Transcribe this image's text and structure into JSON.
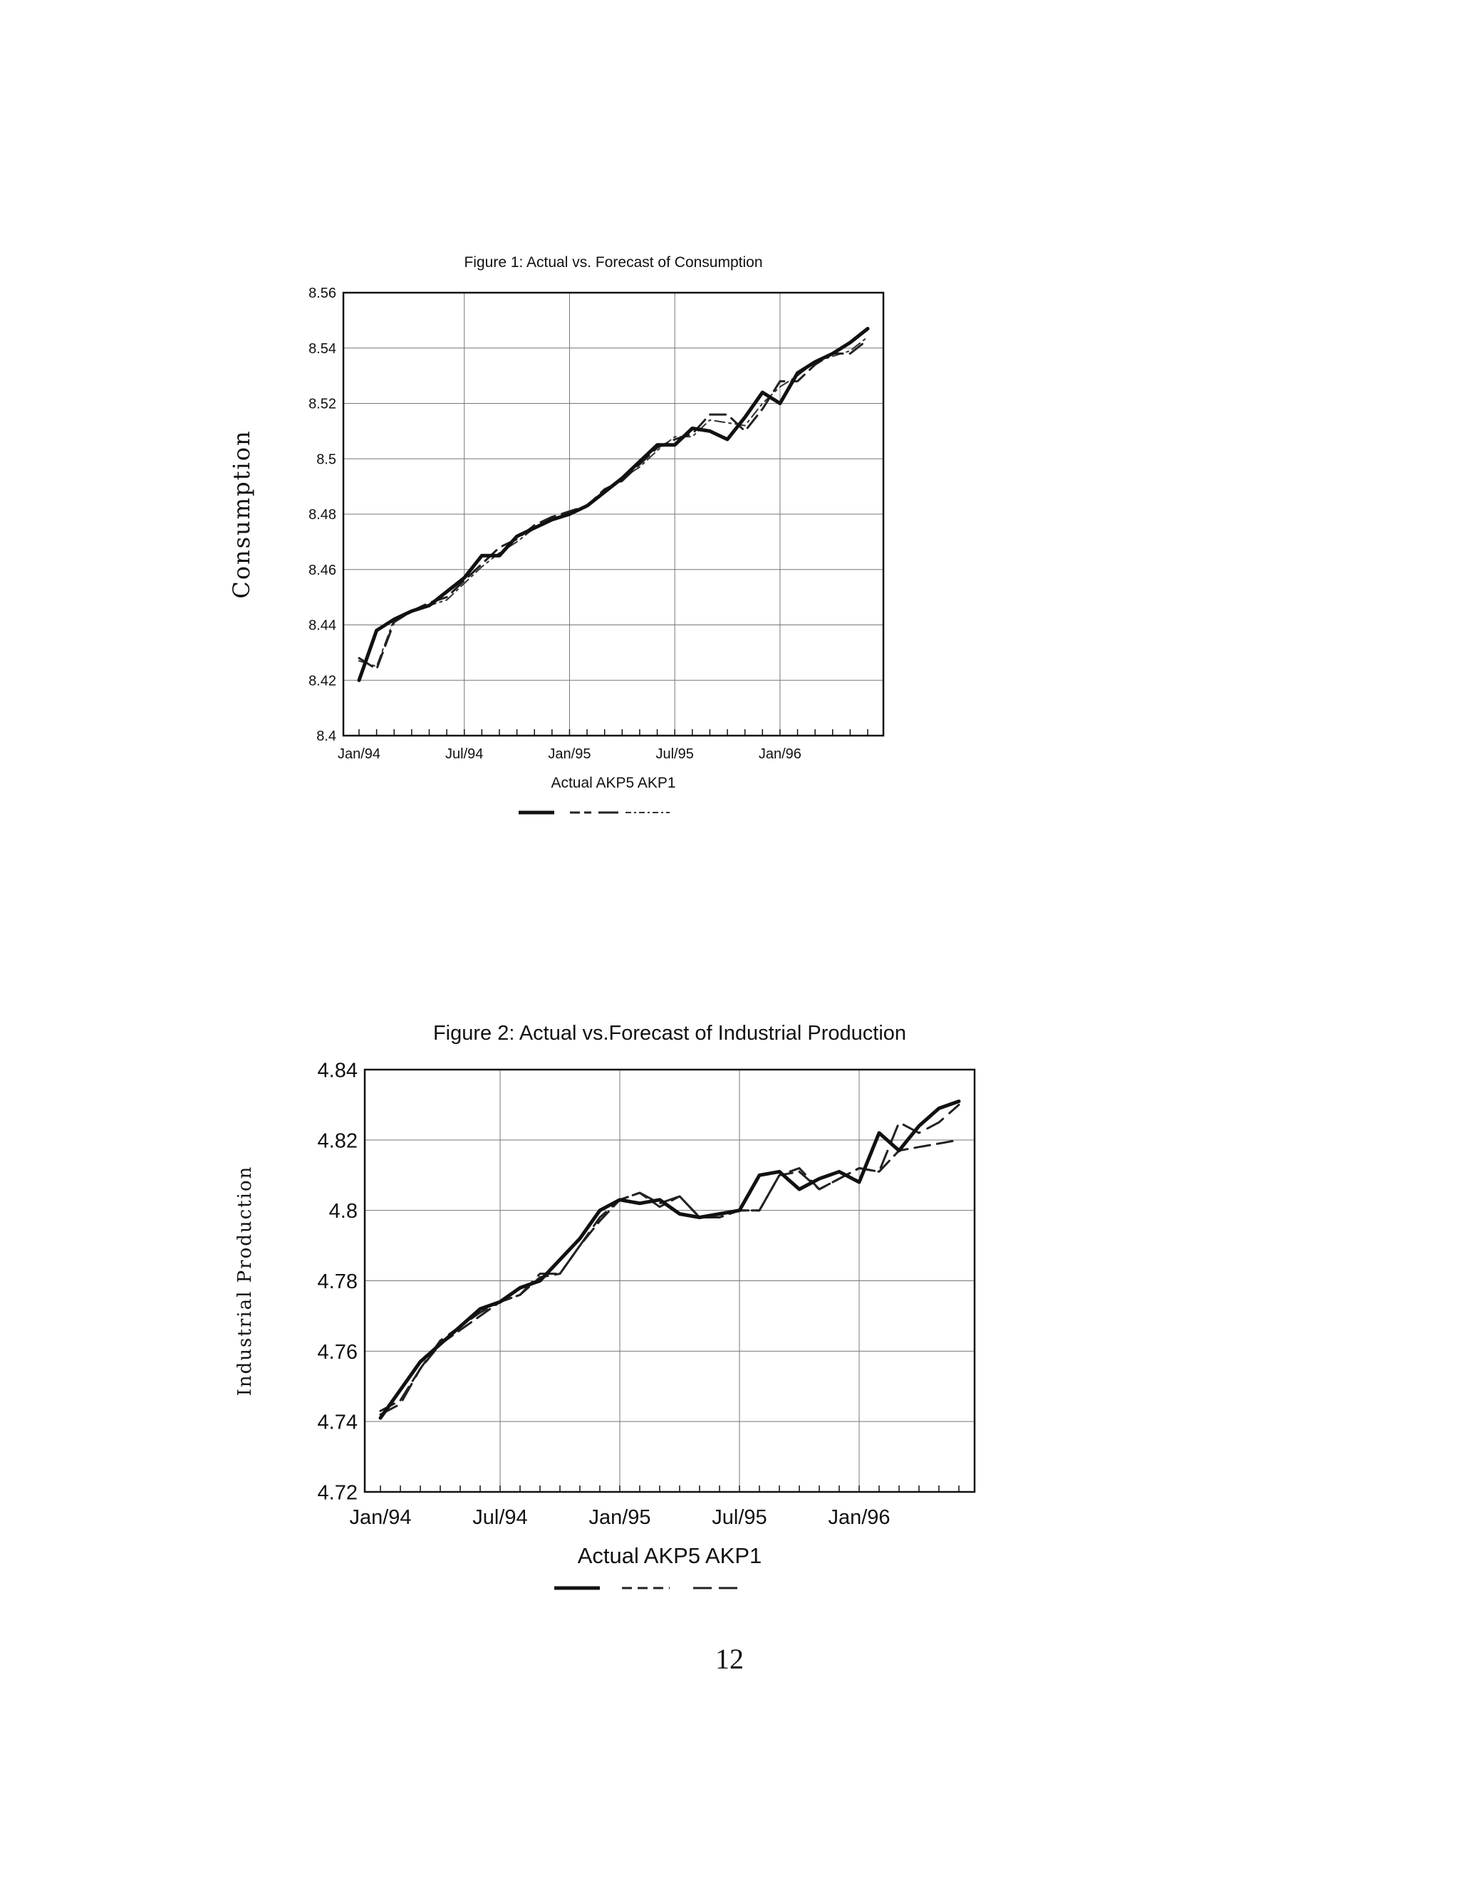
{
  "page_number": "12",
  "chart_data": [
    {
      "type": "line",
      "title": "Figure 1: Actual vs. Forecast of Consumption",
      "xlabel": "",
      "ylabel": "Consumption",
      "ylim": [
        8.4,
        8.56
      ],
      "yticks": [
        8.56,
        8.54,
        8.52,
        8.5,
        8.48,
        8.46,
        8.44,
        8.42,
        8.4
      ],
      "ytick_labels": [
        "8.56",
        "8.54",
        "8.52",
        "8.5",
        "8.48",
        "8.46",
        "8.44",
        "8.42",
        "8.4"
      ],
      "xlim": [
        "Jan/94",
        "Jun/96"
      ],
      "xtick_labels": [
        "Jan/94",
        "Jul/94",
        "Jan/95",
        "Jul/95",
        "Jan/96"
      ],
      "grid": true,
      "legend_text": "Actual AKP5 AKP1",
      "legend_placement": "bottom",
      "x": [
        "Jan/94",
        "Feb/94",
        "Mar/94",
        "Apr/94",
        "May/94",
        "Jun/94",
        "Jul/94",
        "Aug/94",
        "Sep/94",
        "Oct/94",
        "Nov/94",
        "Dec/94",
        "Jan/95",
        "Feb/95",
        "Mar/95",
        "Apr/95",
        "May/95",
        "Jun/95",
        "Jul/95",
        "Aug/95",
        "Sep/95",
        "Oct/95",
        "Nov/95",
        "Dec/95",
        "Jan/96",
        "Feb/96",
        "Mar/96",
        "Apr/96",
        "May/96",
        "Jun/96"
      ],
      "series": [
        {
          "name": "Actual",
          "style": "solid-thick",
          "values": [
            8.42,
            8.438,
            8.442,
            8.445,
            8.447,
            8.452,
            8.457,
            8.465,
            8.465,
            8.472,
            8.475,
            8.478,
            8.48,
            8.483,
            8.488,
            8.493,
            8.499,
            8.505,
            8.505,
            8.511,
            8.51,
            8.507,
            8.515,
            8.524,
            8.52,
            8.531,
            8.535,
            8.538,
            8.542,
            8.547
          ]
        },
        {
          "name": "AKP5",
          "style": "dashed",
          "values": [
            8.428,
            8.424,
            8.441,
            8.445,
            8.448,
            8.45,
            8.456,
            8.462,
            8.468,
            8.471,
            8.476,
            8.479,
            8.481,
            8.483,
            8.489,
            8.492,
            8.498,
            8.504,
            8.507,
            8.509,
            8.516,
            8.516,
            8.51,
            8.518,
            8.528,
            8.528,
            8.534,
            8.538,
            8.538,
            8.543
          ]
        },
        {
          "name": "AKP1",
          "style": "dash-dot",
          "values": [
            8.427,
            8.425,
            8.442,
            8.445,
            8.447,
            8.449,
            8.455,
            8.461,
            8.466,
            8.47,
            8.475,
            8.478,
            8.481,
            8.483,
            8.488,
            8.493,
            8.497,
            8.503,
            8.508,
            8.508,
            8.514,
            8.513,
            8.512,
            8.52,
            8.526,
            8.53,
            8.535,
            8.537,
            8.539,
            8.544
          ]
        }
      ]
    },
    {
      "type": "line",
      "title": "Figure 2: Actual vs.Forecast of Industrial Production",
      "xlabel": "",
      "ylabel": "Industrial Production",
      "ylim": [
        4.72,
        4.84
      ],
      "yticks": [
        4.84,
        4.82,
        4.8,
        4.78,
        4.76,
        4.74,
        4.72
      ],
      "ytick_labels": [
        "4.84",
        "4.82",
        "4.8",
        "4.78",
        "4.76",
        "4.74",
        "4.72"
      ],
      "xlim": [
        "Jan/94",
        "Jun/96"
      ],
      "xtick_labels": [
        "Jan/94",
        "Jul/94",
        "Jan/95",
        "Jul/95",
        "Jan/96"
      ],
      "grid": true,
      "legend_text": "Actual AKP5 AKP1",
      "legend_placement": "bottom",
      "x": [
        "Jan/94",
        "Feb/94",
        "Mar/94",
        "Apr/94",
        "May/94",
        "Jun/94",
        "Jul/94",
        "Aug/94",
        "Sep/94",
        "Oct/94",
        "Nov/94",
        "Dec/94",
        "Jan/95",
        "Feb/95",
        "Mar/95",
        "Apr/95",
        "May/95",
        "Jun/95",
        "Jul/95",
        "Aug/95",
        "Sep/95",
        "Oct/95",
        "Nov/95",
        "Dec/95",
        "Jan/96",
        "Feb/96",
        "Mar/96",
        "Apr/96",
        "May/96",
        "Jun/96"
      ],
      "series": [
        {
          "name": "Actual",
          "style": "solid-thick",
          "values": [
            4.741,
            4.749,
            4.757,
            4.762,
            4.767,
            4.772,
            4.774,
            4.778,
            4.78,
            4.786,
            4.792,
            4.8,
            4.803,
            4.802,
            4.803,
            4.799,
            4.798,
            4.799,
            4.8,
            4.81,
            4.811,
            4.806,
            4.809,
            4.811,
            4.808,
            4.822,
            4.817,
            4.824,
            4.829,
            4.831
          ]
        },
        {
          "name": "AKP5",
          "style": "dashed",
          "values": [
            4.743,
            4.746,
            4.755,
            4.762,
            4.766,
            4.77,
            4.774,
            4.776,
            4.781,
            4.782,
            4.79,
            4.797,
            4.803,
            4.805,
            4.801,
            4.804,
            4.798,
            4.798,
            4.8,
            4.8,
            4.81,
            4.811,
            4.806,
            4.809,
            4.812,
            4.811,
            4.817,
            4.818,
            4.819,
            4.82
          ]
        },
        {
          "name": "AKP1",
          "style": "dash-dash",
          "values": [
            4.742,
            4.745,
            4.755,
            4.763,
            4.767,
            4.771,
            4.774,
            4.776,
            4.782,
            4.782,
            4.79,
            4.798,
            4.803,
            4.805,
            4.802,
            4.804,
            4.798,
            4.798,
            4.8,
            4.8,
            4.81,
            4.812,
            4.806,
            4.809,
            4.812,
            4.811,
            4.825,
            4.822,
            4.825,
            4.83
          ]
        }
      ]
    }
  ]
}
